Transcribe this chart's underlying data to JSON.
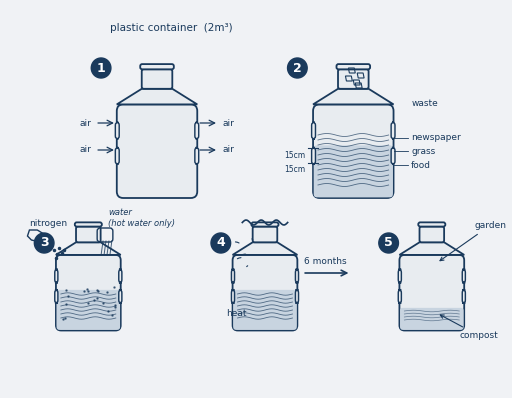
{
  "bg_color": "#f0f2f5",
  "bottle_color": "#e8ecf0",
  "outline_color": "#1a3a5c",
  "circle_color": "#1a3a5c",
  "text_color": "#1a3a5c",
  "title": "plastic container  (2m³)",
  "step1_label": "1",
  "step2_label": "2",
  "step3_label": "3",
  "step4_label": "4",
  "step5_label": "5",
  "air_labels": [
    "air",
    "air",
    "air",
    "air"
  ],
  "step2_annotations": [
    "waste",
    "newspaper",
    "grass",
    "food"
  ],
  "step2_cm": [
    "15cm",
    "15cm"
  ],
  "step3_labels": [
    "nitrogen",
    "water\n(hot water only)"
  ],
  "step4_labels": [
    "heat"
  ],
  "step5_labels": [
    "garden",
    "compost"
  ],
  "months_label": "6 months"
}
